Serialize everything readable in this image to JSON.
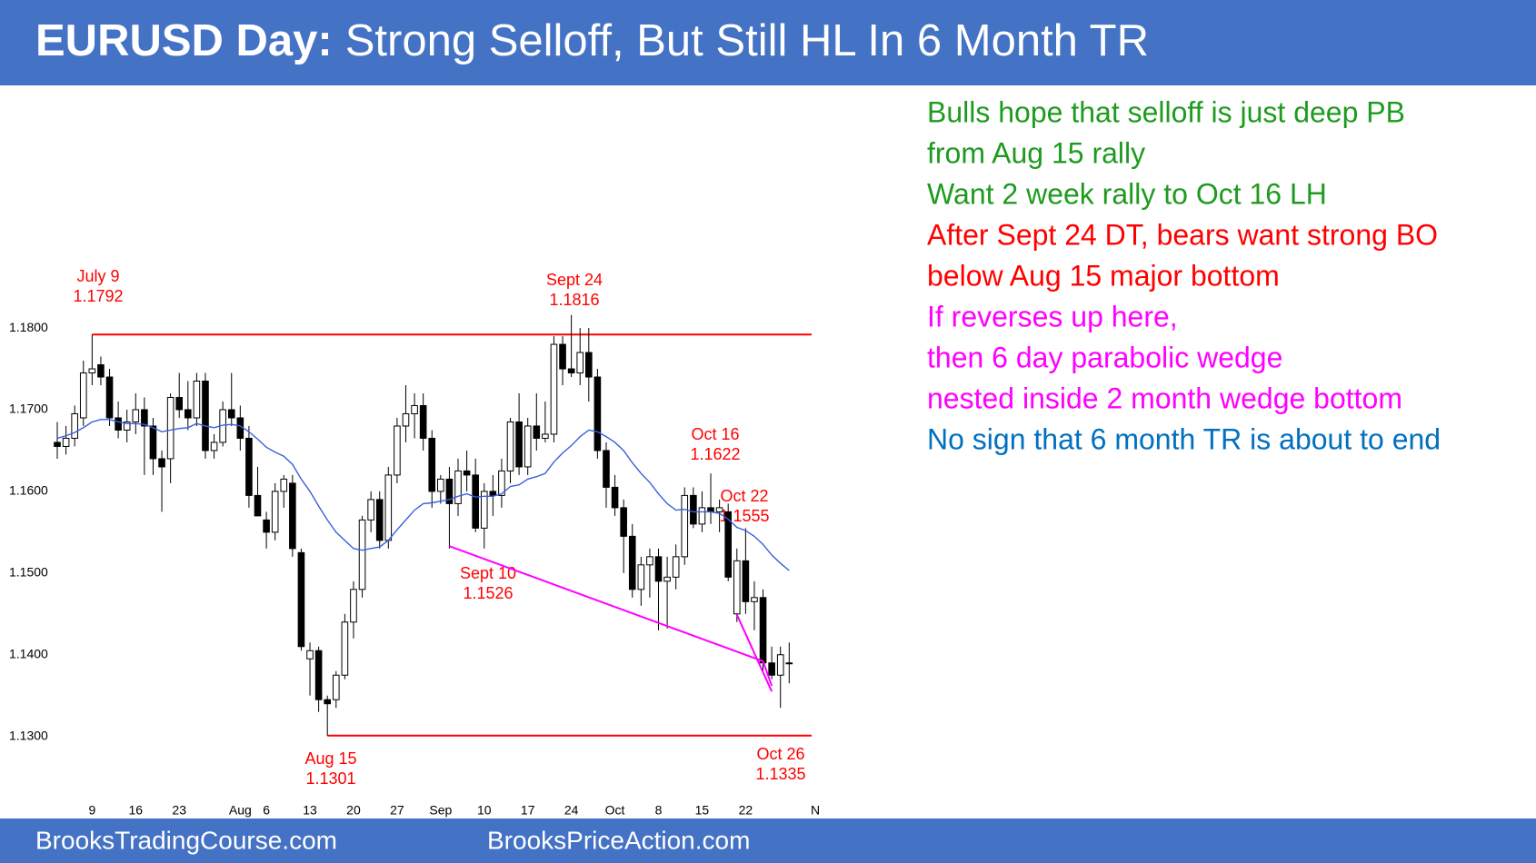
{
  "header": {
    "title_bold": "EURUSD Day:",
    "title": "Strong Selloff, But Still HL In 6 Month TR"
  },
  "chart_data": {
    "type": "candlestick",
    "categories": [
      null,
      null,
      null,
      null,
      "9",
      null,
      null,
      null,
      null,
      "16",
      null,
      null,
      null,
      null,
      "23",
      null,
      null,
      null,
      null,
      null,
      null,
      "Aug",
      null,
      null,
      "6",
      null,
      null,
      null,
      null,
      "13",
      null,
      null,
      null,
      null,
      "20",
      null,
      null,
      null,
      null,
      "27",
      null,
      null,
      null,
      null,
      "Sep",
      null,
      null,
      null,
      null,
      "10",
      null,
      null,
      null,
      null,
      "17",
      null,
      null,
      null,
      null,
      "24",
      null,
      null,
      null,
      null,
      "Oct",
      null,
      null,
      null,
      null,
      "8",
      null,
      null,
      null,
      null,
      "15",
      null,
      null,
      null,
      null,
      "22",
      null,
      null,
      null,
      null,
      null,
      null,
      null,
      "N"
    ],
    "open": [
      1.166,
      1.1655,
      1.1665,
      1.169,
      1.1745,
      1.1755,
      1.174,
      1.169,
      1.1675,
      1.1685,
      1.17,
      1.168,
      1.164,
      1.164,
      1.1715,
      1.17,
      1.169,
      1.1735,
      1.165,
      1.166,
      1.17,
      1.169,
      1.1665,
      1.1595,
      1.1565,
      1.155,
      1.16,
      1.161,
      1.1525,
      1.1395,
      1.1405,
      1.1345,
      1.1345,
      1.1375,
      1.144,
      1.148,
      1.1565,
      1.159,
      1.154,
      1.162,
      1.168,
      1.1695,
      1.1705,
      1.1665,
      1.16,
      1.1615,
      1.1585,
      1.1625,
      1.162,
      1.1555,
      1.16,
      1.1595,
      1.1625,
      1.1685,
      1.163,
      1.168,
      1.1665,
      1.167,
      1.178,
      1.175,
      1.1745,
      1.177,
      1.174,
      1.165,
      1.1605,
      1.158,
      1.1545,
      1.148,
      1.151,
      1.152,
      1.149,
      1.1495,
      1.152,
      1.1595,
      1.156,
      1.158,
      1.1575,
      1.1575,
      1.145,
      1.1515,
      1.1465,
      1.147,
      1.139,
      1.1375,
      1.139,
      null,
      null,
      null
    ],
    "high": [
      1.1685,
      1.168,
      1.1705,
      1.176,
      1.1792,
      1.1765,
      1.175,
      1.171,
      1.17,
      1.172,
      1.1715,
      1.169,
      1.165,
      1.172,
      1.1745,
      1.1735,
      1.1745,
      1.1745,
      1.167,
      1.171,
      1.1745,
      1.1705,
      1.168,
      1.163,
      1.1575,
      1.161,
      1.162,
      1.162,
      1.153,
      1.1415,
      1.141,
      1.135,
      1.138,
      1.145,
      1.149,
      1.157,
      1.16,
      1.16,
      1.163,
      1.169,
      1.173,
      1.172,
      1.172,
      1.1675,
      1.162,
      1.163,
      1.164,
      1.165,
      1.164,
      1.161,
      1.162,
      1.164,
      1.169,
      1.172,
      1.169,
      1.172,
      1.171,
      1.179,
      1.179,
      1.1816,
      1.18,
      1.18,
      1.175,
      1.166,
      1.162,
      1.159,
      1.156,
      1.152,
      1.153,
      1.153,
      1.152,
      1.1535,
      1.1605,
      1.1605,
      1.16,
      1.1622,
      1.159,
      1.1585,
      1.153,
      1.1555,
      1.149,
      1.148,
      1.141,
      1.141,
      1.1415,
      null,
      null,
      null
    ],
    "low": [
      1.164,
      1.1645,
      1.1655,
      1.168,
      1.173,
      1.173,
      1.168,
      1.1665,
      1.166,
      1.167,
      1.162,
      1.162,
      1.1575,
      1.161,
      1.169,
      1.1675,
      1.168,
      1.164,
      1.164,
      1.1655,
      1.168,
      1.165,
      1.158,
      1.157,
      1.153,
      1.154,
      1.158,
      1.152,
      1.1405,
      1.135,
      1.133,
      1.1301,
      1.1335,
      1.137,
      1.142,
      1.147,
      1.155,
      1.153,
      1.153,
      1.161,
      1.166,
      1.1665,
      1.165,
      1.158,
      1.1585,
      1.153,
      1.157,
      1.16,
      1.155,
      1.153,
      1.157,
      1.158,
      1.161,
      1.162,
      1.162,
      1.165,
      1.166,
      1.166,
      1.173,
      1.174,
      1.173,
      1.171,
      1.164,
      1.158,
      1.157,
      1.15,
      1.147,
      1.146,
      1.147,
      1.143,
      1.1432,
      1.148,
      1.151,
      1.1555,
      1.155,
      1.156,
      1.155,
      1.149,
      1.144,
      1.145,
      1.143,
      1.138,
      1.137,
      1.1335,
      1.1365,
      null,
      null,
      null
    ],
    "close": [
      1.1655,
      1.1665,
      1.1695,
      1.1745,
      1.175,
      1.174,
      1.169,
      1.1675,
      1.1685,
      1.17,
      1.168,
      1.164,
      1.163,
      1.1715,
      1.17,
      1.169,
      1.1735,
      1.165,
      1.166,
      1.17,
      1.169,
      1.1665,
      1.1595,
      1.157,
      1.155,
      1.16,
      1.1615,
      1.153,
      1.141,
      1.1405,
      1.1345,
      1.134,
      1.1375,
      1.144,
      1.148,
      1.1565,
      1.159,
      1.154,
      1.162,
      1.168,
      1.1695,
      1.1705,
      1.1665,
      1.16,
      1.1615,
      1.1585,
      1.1625,
      1.162,
      1.1555,
      1.16,
      1.1595,
      1.1625,
      1.1685,
      1.163,
      1.168,
      1.1665,
      1.167,
      1.178,
      1.175,
      1.1745,
      1.177,
      1.174,
      1.165,
      1.1605,
      1.158,
      1.1545,
      1.148,
      1.151,
      1.152,
      1.149,
      1.1495,
      1.152,
      1.1595,
      1.156,
      1.158,
      1.1575,
      1.158,
      1.1495,
      1.1515,
      1.1465,
      1.147,
      1.139,
      1.1375,
      1.14,
      1.139,
      null,
      null,
      null
    ],
    "up_color": "#ffffff",
    "down_color": "#000000",
    "ma": {
      "color": "#3a5fd9",
      "values": [
        1.1665,
        1.1668,
        1.1672,
        1.1678,
        1.1685,
        1.1688,
        1.1688,
        1.1685,
        1.1683,
        1.1683,
        1.1682,
        1.1678,
        1.1673,
        1.1675,
        1.1677,
        1.1678,
        1.1683,
        1.168,
        1.1678,
        1.1681,
        1.1682,
        1.168,
        1.1673,
        1.1664,
        1.1654,
        1.1648,
        1.1643,
        1.1633,
        1.1615,
        1.16,
        1.1582,
        1.1565,
        1.155,
        1.154,
        1.153,
        1.1528,
        1.153,
        1.1532,
        1.154,
        1.1553,
        1.1565,
        1.1577,
        1.1585,
        1.1586,
        1.1588,
        1.159,
        1.1594,
        1.1597,
        1.1593,
        1.1594,
        1.1594,
        1.1597,
        1.1606,
        1.1608,
        1.1615,
        1.1618,
        1.1622,
        1.1636,
        1.1647,
        1.1656,
        1.1667,
        1.1675,
        1.1673,
        1.1667,
        1.166,
        1.165,
        1.1635,
        1.1622,
        1.1611,
        1.1597,
        1.1585,
        1.1577,
        1.1578,
        1.1575,
        1.1575,
        1.1575,
        1.1573,
        1.1566,
        1.1556,
        1.1552,
        1.1545,
        1.1535,
        1.1522,
        1.1512,
        1.1503,
        null,
        null,
        null
      ]
    },
    "ylim": [
      1.12,
      1.21
    ],
    "yticks": [
      {
        "value": 1.13,
        "label": "1.1300"
      },
      {
        "value": 1.14,
        "label": "1.1400"
      },
      {
        "value": 1.15,
        "label": "1.1500"
      },
      {
        "value": 1.16,
        "label": "1.1600"
      },
      {
        "value": 1.17,
        "label": "1.1700"
      },
      {
        "value": 1.18,
        "label": "1.1800"
      }
    ],
    "annotation_color": "#ff0000",
    "annotations": [
      {
        "label": "July 9",
        "value": 1.1792,
        "line_from": 4
      },
      {
        "label": "Sept 24",
        "value": 1.1816
      },
      {
        "label": "Oct 16",
        "value": 1.1622
      },
      {
        "label": "Oct 22",
        "value": 1.1555
      },
      {
        "label": "Sept 10",
        "value": 1.1526
      },
      {
        "label": "Aug 15",
        "value": 1.1301,
        "line_from": 31
      },
      {
        "label": "Oct 26",
        "value": 1.1335
      }
    ],
    "wedges": [
      {
        "color": "#ff00ff",
        "x": [
          45,
          81,
          82
        ],
        "y": [
          1.1533,
          1.1392,
          1.1362
        ]
      },
      {
        "color": "#ff00ff",
        "x": [
          78,
          82
        ],
        "y": [
          1.1449,
          1.1355
        ]
      }
    ]
  },
  "notes": [
    {
      "text": "Bulls hope that selloff is just deep PB",
      "color": "#1e9b1e"
    },
    {
      "text": "from Aug 15 rally",
      "color": "#1e9b1e"
    },
    {
      "text": "Want 2 week rally to Oct 16 LH",
      "color": "#1e9b1e"
    },
    {
      "text": "After Sept 24 DT, bears want strong BO",
      "color": "#ff0000"
    },
    {
      "text": "below Aug 15 major bottom",
      "color": "#ff0000"
    },
    {
      "text": "If reverses up here,",
      "color": "#ff00ff"
    },
    {
      "text": "then 6 day parabolic wedge",
      "color": "#ff00ff"
    },
    {
      "text": "nested inside 2 month wedge bottom",
      "color": "#ff00ff"
    },
    {
      "text": "No sign that 6 month TR is about to end",
      "color": "#0070c0"
    }
  ],
  "footer": [
    "BrooksTradingCourse.com",
    "BrooksPriceAction.com"
  ]
}
